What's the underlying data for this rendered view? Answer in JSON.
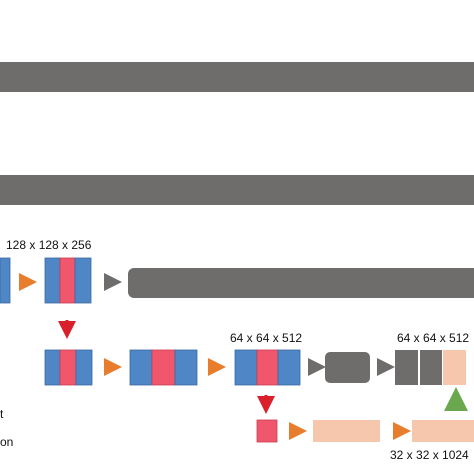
{
  "labels": [
    "128 x 128 x 256",
    "64 x 64 x 512",
    "64 x 64 x 512",
    "32 x 32 x 1024"
  ],
  "fragments": [
    "t",
    "on"
  ]
}
